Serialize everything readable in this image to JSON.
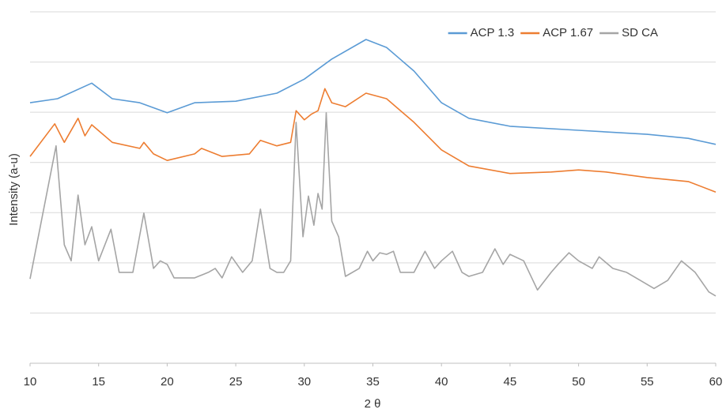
{
  "chart_data": {
    "type": "line",
    "x_label": "2 θ",
    "y_label": "Intensity (a-u)",
    "xlim": [
      10,
      60
    ],
    "xticks": [
      10,
      15,
      20,
      25,
      30,
      35,
      40,
      45,
      50,
      55,
      60
    ],
    "ylim": [
      0,
      7
    ],
    "yticks": [
      0,
      1,
      2,
      3,
      4,
      5,
      6,
      7
    ],
    "grid": true,
    "legend": "top-right",
    "series": [
      {
        "name": "ACP 1.3",
        "color": "#5b9bd5",
        "x": [
          10,
          12,
          14.5,
          16,
          18,
          20,
          22,
          25,
          28,
          30,
          32,
          34.5,
          36,
          38,
          40,
          42,
          45,
          50,
          55,
          58,
          60
        ],
        "values": [
          5.19,
          5.27,
          5.58,
          5.27,
          5.19,
          4.99,
          5.19,
          5.22,
          5.38,
          5.66,
          6.06,
          6.45,
          6.29,
          5.82,
          5.19,
          4.88,
          4.72,
          4.64,
          4.56,
          4.48,
          4.36
        ]
      },
      {
        "name": "ACP 1.67",
        "color": "#ed7d31",
        "x": [
          10,
          11.8,
          12.5,
          13.5,
          14,
          14.5,
          16,
          18,
          18.3,
          19,
          20,
          22,
          22.5,
          24,
          26,
          26.8,
          28,
          29,
          29.4,
          30,
          30.5,
          31,
          31.5,
          32,
          33,
          34.5,
          36,
          38,
          40,
          42,
          45,
          48,
          50,
          52,
          55,
          58,
          60
        ],
        "values": [
          4.12,
          4.77,
          4.4,
          4.88,
          4.53,
          4.75,
          4.4,
          4.28,
          4.4,
          4.17,
          4.04,
          4.17,
          4.28,
          4.12,
          4.17,
          4.44,
          4.33,
          4.4,
          5.03,
          4.85,
          4.96,
          5.03,
          5.47,
          5.19,
          5.11,
          5.38,
          5.27,
          4.8,
          4.25,
          3.93,
          3.78,
          3.81,
          3.85,
          3.81,
          3.7,
          3.62,
          3.41
        ]
      },
      {
        "name": "SD CA",
        "color": "#a5a5a5",
        "x": [
          10,
          11.9,
          12.5,
          13,
          13.5,
          14,
          14.5,
          15,
          15.9,
          16.5,
          17.5,
          18.3,
          19,
          19.5,
          20,
          20.5,
          22,
          23,
          23.5,
          24,
          24.7,
          25.5,
          26.2,
          26.8,
          27.5,
          28,
          28.5,
          29,
          29.4,
          29.9,
          30.3,
          30.7,
          31,
          31.3,
          31.6,
          32,
          32.5,
          33,
          34,
          34.6,
          35,
          35.5,
          36,
          36.5,
          37,
          38,
          38.8,
          39.5,
          40,
          40.8,
          41.5,
          42,
          43,
          43.9,
          44.5,
          45,
          46,
          47,
          48,
          48.5,
          49.3,
          50,
          51,
          51.5,
          52.5,
          53.5,
          54.5,
          55.5,
          56.5,
          57.5,
          58.5,
          59.5,
          60
        ],
        "values": [
          1.68,
          4.33,
          2.36,
          2.04,
          3.35,
          2.36,
          2.72,
          2.04,
          2.67,
          1.81,
          1.81,
          2.99,
          1.89,
          2.04,
          1.97,
          1.7,
          1.7,
          1.81,
          1.89,
          1.7,
          2.12,
          1.81,
          2.04,
          3.07,
          1.89,
          1.81,
          1.81,
          2.04,
          4.8,
          2.52,
          3.33,
          2.75,
          3.38,
          3.07,
          4.99,
          2.83,
          2.52,
          1.73,
          1.89,
          2.23,
          2.04,
          2.2,
          2.17,
          2.23,
          1.81,
          1.81,
          2.23,
          1.89,
          2.04,
          2.23,
          1.81,
          1.73,
          1.81,
          2.28,
          1.97,
          2.17,
          2.04,
          1.46,
          1.81,
          1.97,
          2.2,
          2.04,
          1.89,
          2.12,
          1.89,
          1.81,
          1.65,
          1.49,
          1.65,
          2.04,
          1.81,
          1.42,
          1.34
        ]
      }
    ]
  }
}
